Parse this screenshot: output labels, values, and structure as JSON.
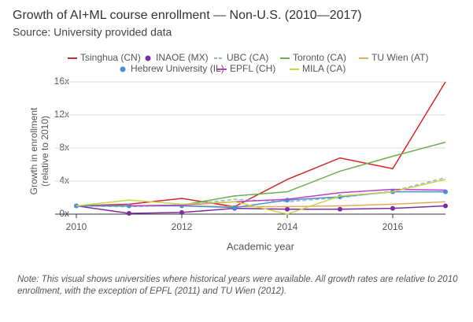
{
  "chart_data": {
    "type": "line",
    "title": "Growth of AI+ML course enrollment — Non-U.S. (2010—2017)",
    "subtitle": "Source: University provided data",
    "xlabel": "Academic year",
    "ylabel": [
      "Growth in enrollment",
      "(relative to 2010)"
    ],
    "note": "Note: This visual shows universities where historical years were available. All growth rates are relative to 2010 enrollment, with the exception of EPFL (2011) and TU Wien (2012).",
    "x": [
      2010,
      2011,
      2012,
      2013,
      2014,
      2015,
      2016,
      2017
    ],
    "xlim": [
      2010,
      2017
    ],
    "xticks": [
      2010,
      2012,
      2014,
      2016
    ],
    "ylim": [
      0,
      16
    ],
    "yticks": [
      {
        "value": 0,
        "label": "0x"
      },
      {
        "value": 4,
        "label": "4x"
      },
      {
        "value": 8,
        "label": "8x"
      },
      {
        "value": 12,
        "label": "12x"
      },
      {
        "value": 16,
        "label": "16x"
      }
    ],
    "grid": true,
    "series": [
      {
        "name": "Tsinghua (CN)",
        "color": "#d62728",
        "values": [
          1,
          1.2,
          1.9,
          0.9,
          4.2,
          6.8,
          5.5,
          16
        ]
      },
      {
        "name": "INAOE (MX)",
        "color": "#7b2d9e",
        "marker": true,
        "values": [
          1,
          0.1,
          0.2,
          0.7,
          0.6,
          0.6,
          0.7,
          1.0
        ]
      },
      {
        "name": "UBC (CA)",
        "color": "#8fb8cc",
        "dashed": true,
        "values": [
          1,
          0.9,
          1.1,
          1.8,
          1.5,
          2.0,
          2.8,
          4.4
        ]
      },
      {
        "name": "Toronto (CA)",
        "color": "#6ab04c",
        "values": [
          1,
          1.0,
          1.1,
          2.2,
          2.7,
          5.2,
          7.0,
          8.7
        ]
      },
      {
        "name": "TU Wien (AT)",
        "color": "#e8a95c",
        "values": [
          null,
          null,
          1,
          0.9,
          0.9,
          1.0,
          1.2,
          1.5
        ]
      },
      {
        "name": "Hebrew University (IL)",
        "color": "#4a90d9",
        "marker": true,
        "values": [
          1,
          1.0,
          1.0,
          0.8,
          1.7,
          2.1,
          2.7,
          2.7
        ]
      },
      {
        "name": "EPFL (CH)",
        "color": "#c03fc0",
        "values": [
          null,
          1,
          1.1,
          1.5,
          1.8,
          2.6,
          3.0,
          2.9
        ]
      },
      {
        "name": "MILA (CA)",
        "color": "#c8d44a",
        "values": [
          1,
          1.7,
          1.2,
          1.5,
          0,
          2.2,
          2.7,
          4.2
        ]
      }
    ]
  }
}
